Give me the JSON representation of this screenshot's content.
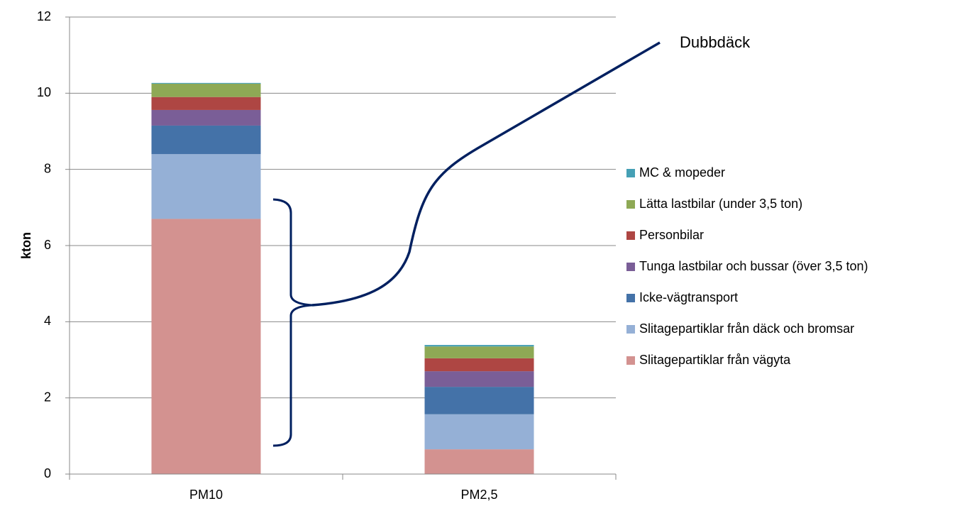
{
  "chart_data": {
    "type": "stacked_bar",
    "ylabel": "kton",
    "categories": [
      "PM10",
      "PM2,5"
    ],
    "ylim": [
      0,
      12
    ],
    "yticks": [
      0,
      2,
      4,
      6,
      8,
      10,
      12
    ],
    "grid": true,
    "series": [
      {
        "name": "Slitagepartiklar från vägyta",
        "color": "#d39290",
        "values": [
          6.7,
          0.65
        ]
      },
      {
        "name": "Slitagepartiklar från däck och bromsar",
        "color": "#95b0d6",
        "values": [
          1.7,
          0.92
        ]
      },
      {
        "name": "Icke-vägtransport",
        "color": "#4472a8",
        "values": [
          0.75,
          0.72
        ]
      },
      {
        "name": "Tunga lastbilar och bussar (över 3,5 ton)",
        "color": "#7a5e97",
        "values": [
          0.41,
          0.41
        ]
      },
      {
        "name": "Personbilar",
        "color": "#ae4643",
        "values": [
          0.34,
          0.34
        ]
      },
      {
        "name": "Lätta lastbilar (under 3,5 ton)",
        "color": "#8ea955",
        "values": [
          0.35,
          0.31
        ]
      },
      {
        "name": "MC & mopeder",
        "color": "#45a0b5",
        "values": [
          0.02,
          0.04
        ]
      }
    ],
    "annotation": "Dubbdäck"
  }
}
